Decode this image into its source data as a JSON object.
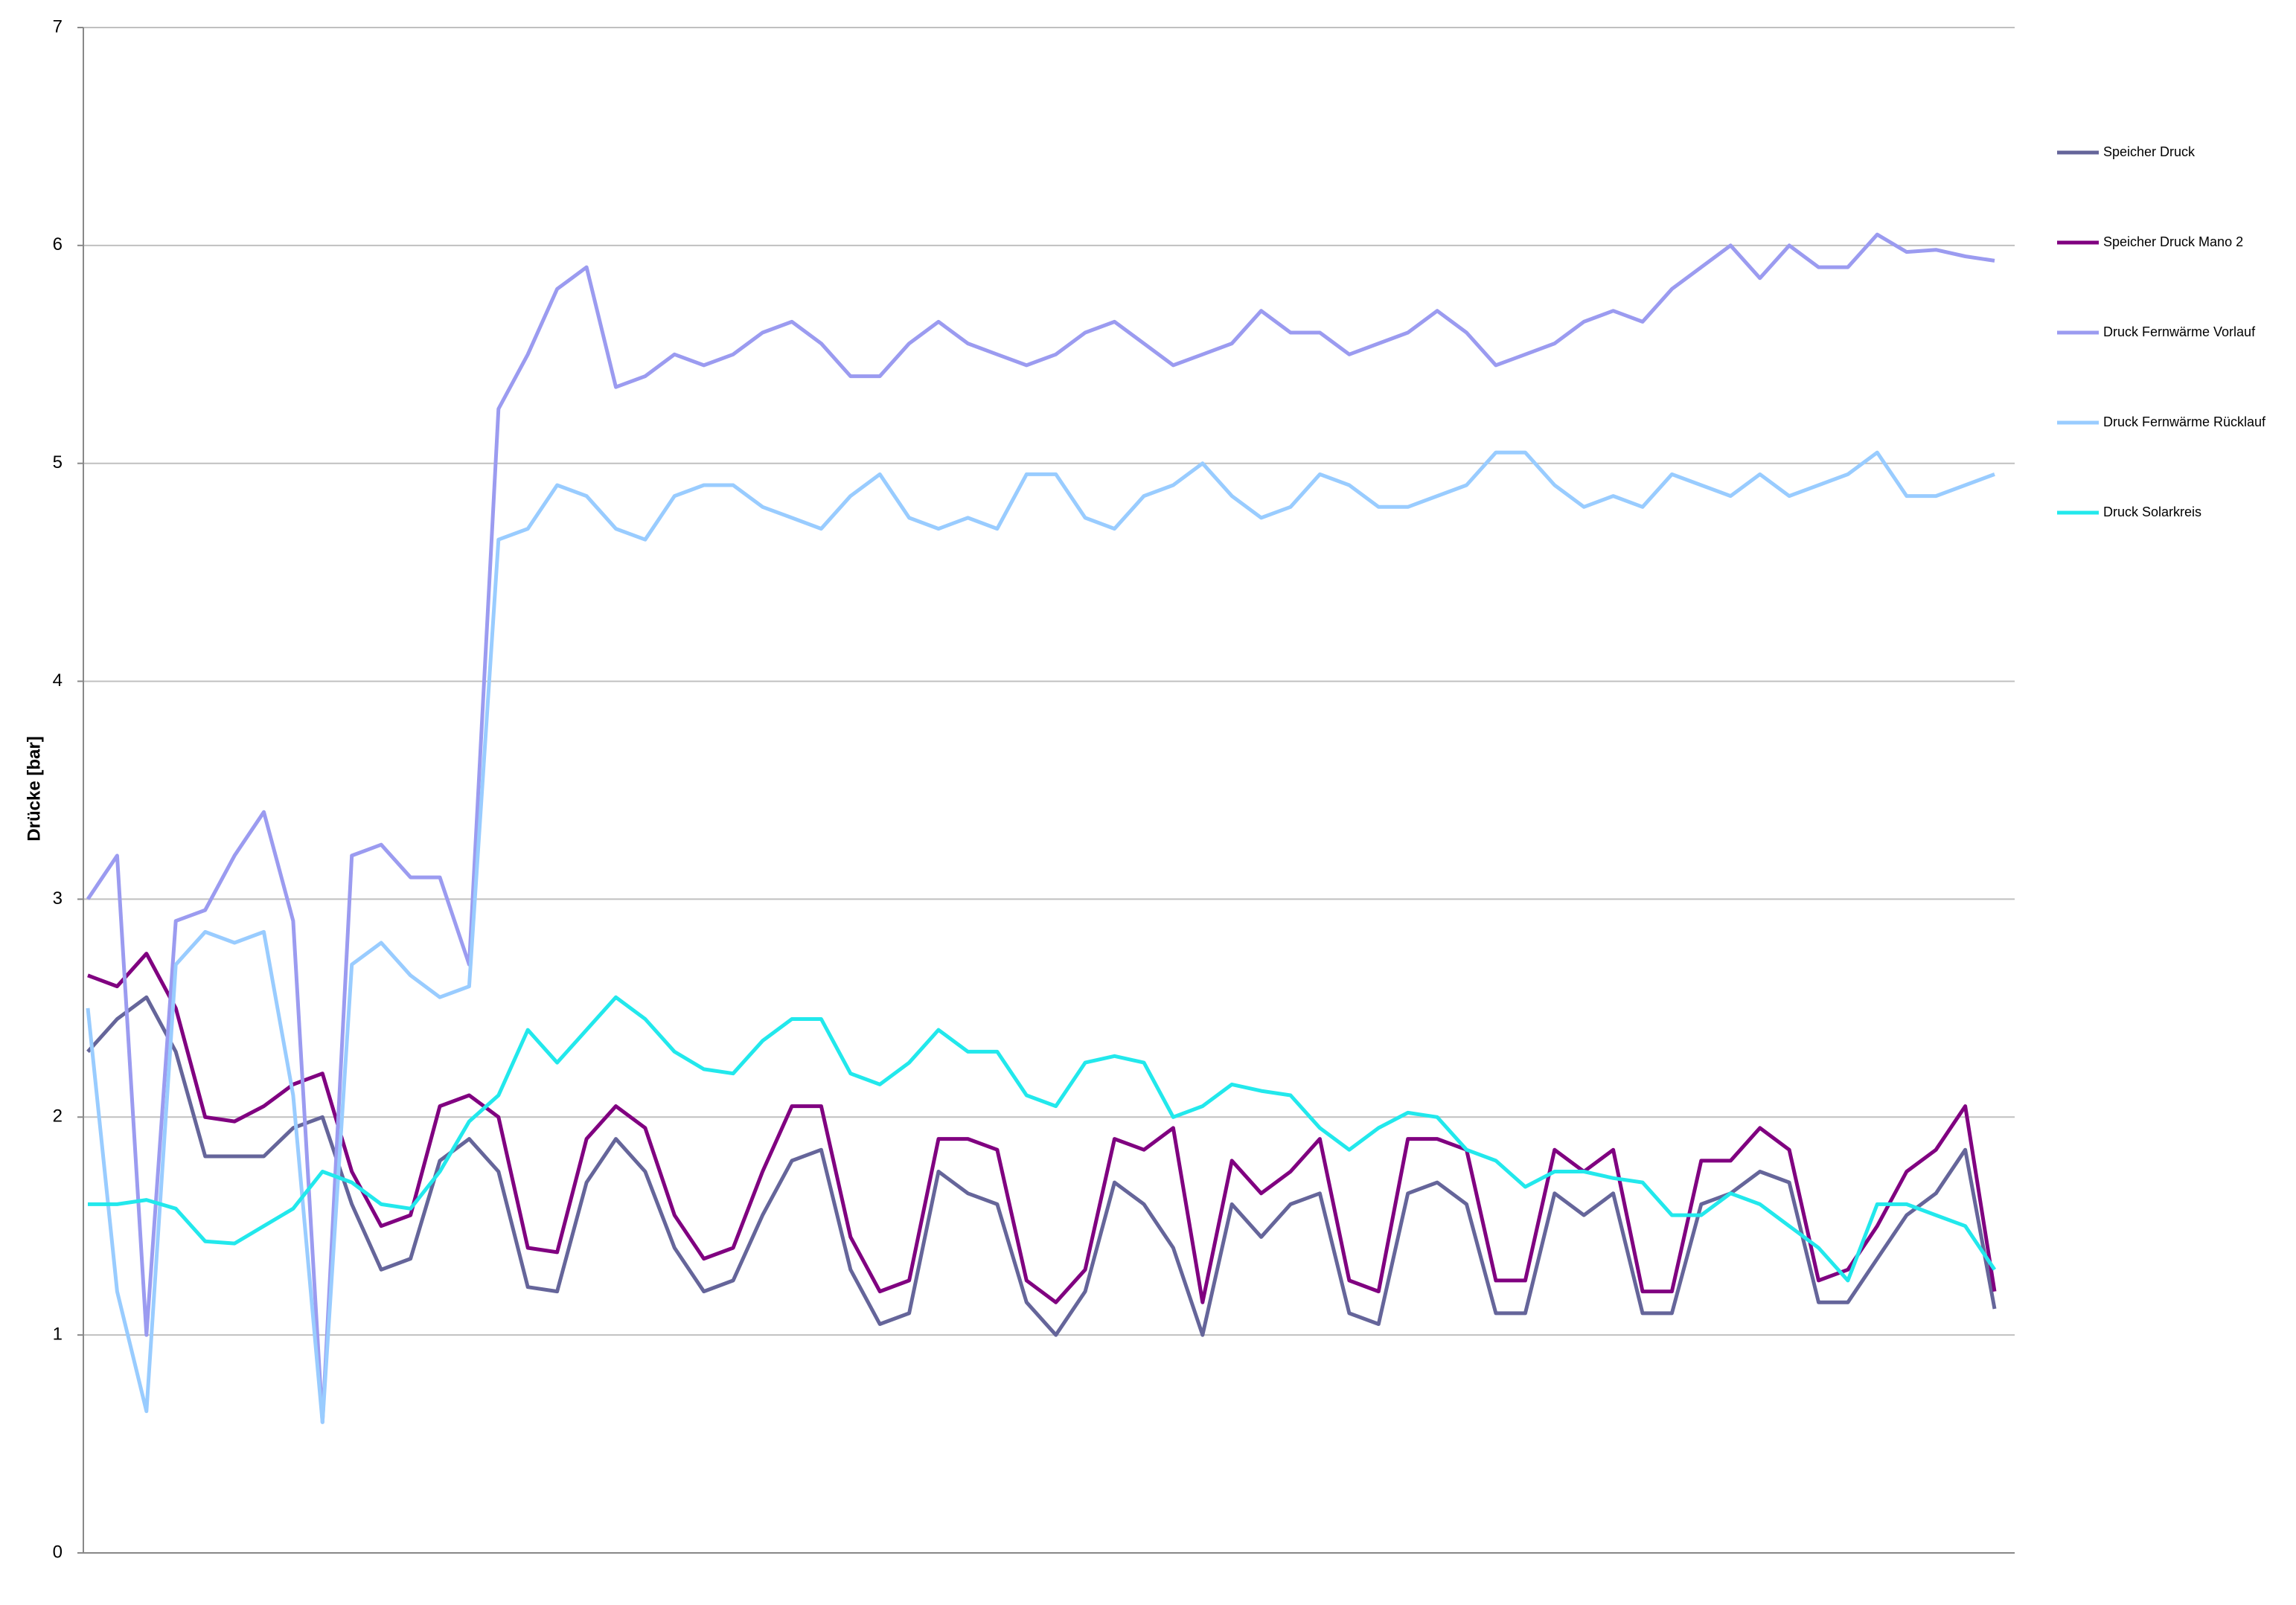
{
  "chart_data": {
    "type": "line",
    "y_label": "Drücke [bar]",
    "categories": [
      null,
      null,
      null,
      null,
      null,
      null,
      null,
      null,
      null,
      null,
      null,
      null,
      null,
      null,
      null,
      null,
      null,
      null,
      null,
      null,
      null,
      null,
      null,
      null,
      null,
      null,
      null,
      null,
      null,
      null,
      null,
      null,
      null,
      null,
      null,
      null,
      null,
      null,
      null,
      null,
      null,
      null,
      null,
      null,
      null,
      null,
      null,
      null,
      null,
      null,
      null,
      null,
      null,
      null,
      null,
      null,
      null,
      null,
      null,
      null,
      null,
      null,
      null,
      null,
      null,
      null
    ],
    "ylim": [
      0,
      7
    ],
    "yticks": [
      0,
      1,
      2,
      3,
      4,
      5,
      6,
      7
    ],
    "grid": true,
    "legend": "right",
    "series": [
      {
        "name": "Speicher Druck",
        "color": "#65659a",
        "values": [
          2.3,
          2.45,
          2.55,
          2.3,
          1.82,
          1.82,
          1.82,
          1.95,
          2.0,
          1.6,
          1.3,
          1.35,
          1.8,
          1.9,
          1.75,
          1.22,
          1.2,
          1.7,
          1.9,
          1.75,
          1.4,
          1.2,
          1.25,
          1.55,
          1.8,
          1.85,
          1.3,
          1.05,
          1.1,
          1.75,
          1.65,
          1.6,
          1.15,
          1.0,
          1.2,
          1.7,
          1.6,
          1.4,
          1.0,
          1.6,
          1.45,
          1.6,
          1.65,
          1.1,
          1.05,
          1.65,
          1.7,
          1.6,
          1.1,
          1.1,
          1.65,
          1.55,
          1.65,
          1.1,
          1.1,
          1.6,
          1.65,
          1.75,
          1.7,
          1.15,
          1.15,
          1.35,
          1.55,
          1.65,
          1.85,
          1.12
        ]
      },
      {
        "name": "Speicher Druck Mano 2",
        "color": "#800080",
        "values": [
          2.65,
          2.6,
          2.75,
          2.5,
          2.0,
          1.98,
          2.05,
          2.15,
          2.2,
          1.75,
          1.5,
          1.55,
          2.05,
          2.1,
          2.0,
          1.4,
          1.38,
          1.9,
          2.05,
          1.95,
          1.55,
          1.35,
          1.4,
          1.75,
          2.05,
          2.05,
          1.45,
          1.2,
          1.25,
          1.9,
          1.9,
          1.85,
          1.25,
          1.15,
          1.3,
          1.9,
          1.85,
          1.95,
          1.15,
          1.8,
          1.65,
          1.75,
          1.9,
          1.25,
          1.2,
          1.9,
          1.9,
          1.85,
          1.25,
          1.25,
          1.85,
          1.75,
          1.85,
          1.2,
          1.2,
          1.8,
          1.8,
          1.95,
          1.85,
          1.25,
          1.3,
          1.5,
          1.75,
          1.85,
          2.05,
          1.2
        ]
      },
      {
        "name": "Druck Fernwärme Vorlauf",
        "color": "#9b9bf0",
        "values": [
          3.0,
          3.2,
          1.0,
          2.9,
          2.95,
          3.2,
          3.4,
          2.9,
          0.6,
          3.2,
          3.25,
          3.1,
          3.1,
          2.7,
          5.25,
          5.5,
          5.8,
          5.9,
          5.35,
          5.4,
          5.5,
          5.45,
          5.5,
          5.6,
          5.65,
          5.55,
          5.4,
          5.4,
          5.55,
          5.65,
          5.55,
          5.5,
          5.45,
          5.5,
          5.6,
          5.65,
          5.55,
          5.45,
          5.5,
          5.55,
          5.7,
          5.6,
          5.6,
          5.5,
          5.55,
          5.6,
          5.7,
          5.6,
          5.45,
          5.5,
          5.55,
          5.65,
          5.7,
          5.65,
          5.8,
          5.9,
          6.0,
          5.85,
          6.0,
          5.9,
          5.9,
          6.05,
          5.97,
          5.98,
          5.95,
          5.93
        ]
      },
      {
        "name": "Druck Fernwärme Rücklauf",
        "color": "#99ccff",
        "values": [
          2.5,
          1.2,
          0.65,
          2.7,
          2.85,
          2.8,
          2.85,
          2.1,
          0.6,
          2.7,
          2.8,
          2.65,
          2.55,
          2.6,
          4.65,
          4.7,
          4.9,
          4.85,
          4.7,
          4.65,
          4.85,
          4.9,
          4.9,
          4.8,
          4.75,
          4.7,
          4.85,
          4.95,
          4.75,
          4.7,
          4.75,
          4.7,
          4.95,
          4.95,
          4.75,
          4.7,
          4.85,
          4.9,
          5.0,
          4.85,
          4.75,
          4.8,
          4.95,
          4.9,
          4.8,
          4.8,
          4.85,
          4.9,
          5.05,
          5.05,
          4.9,
          4.8,
          4.85,
          4.8,
          4.95,
          4.9,
          4.85,
          4.95,
          4.85,
          4.9,
          4.95,
          5.05,
          4.85,
          4.85,
          4.9,
          4.95
        ]
      },
      {
        "name": "Druck Solarkreis",
        "color": "#22e8ec",
        "values": [
          1.6,
          1.6,
          1.62,
          1.58,
          1.43,
          1.42,
          1.5,
          1.58,
          1.75,
          1.7,
          1.6,
          1.58,
          1.75,
          1.98,
          2.1,
          2.4,
          2.25,
          2.4,
          2.55,
          2.45,
          2.3,
          2.22,
          2.2,
          2.35,
          2.45,
          2.45,
          2.2,
          2.15,
          2.25,
          2.4,
          2.3,
          2.3,
          2.1,
          2.05,
          2.25,
          2.28,
          2.25,
          2.0,
          2.05,
          2.15,
          2.12,
          2.1,
          1.95,
          1.85,
          1.95,
          2.02,
          2.0,
          1.85,
          1.8,
          1.68,
          1.75,
          1.75,
          1.72,
          1.7,
          1.55,
          1.55,
          1.65,
          1.6,
          1.5,
          1.4,
          1.25,
          1.6,
          1.6,
          1.55,
          1.5,
          1.3
        ]
      }
    ]
  }
}
